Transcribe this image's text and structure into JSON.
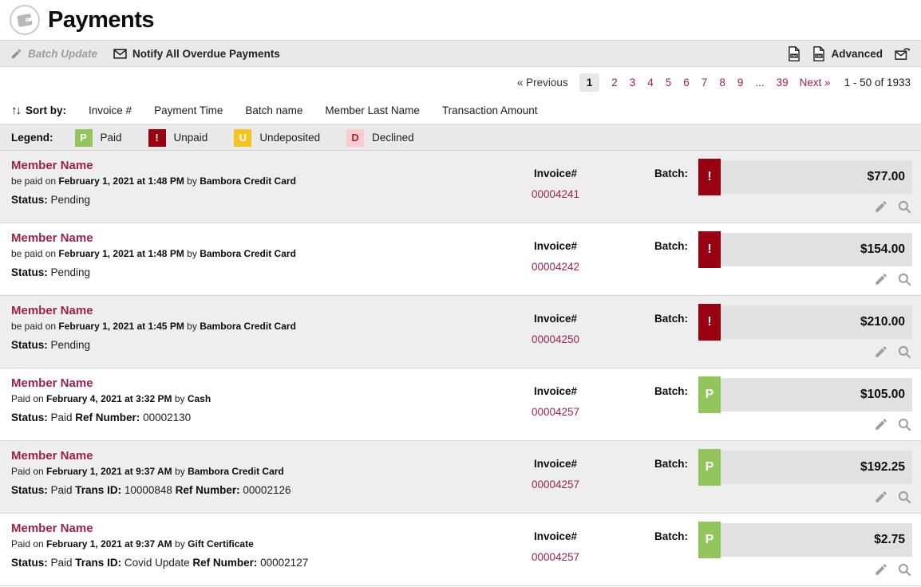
{
  "page": {
    "title": "Payments"
  },
  "toolbar": {
    "batch_update": "Batch Update",
    "notify": "Notify All Overdue Payments",
    "advanced": "Advanced"
  },
  "pagination": {
    "previous": "« Previous",
    "next": "Next »",
    "range": "1 - 50 of 1933",
    "pages": [
      {
        "label": "1",
        "type": "current"
      },
      {
        "label": "2",
        "type": "link"
      },
      {
        "label": "3",
        "type": "link"
      },
      {
        "label": "4",
        "type": "link"
      },
      {
        "label": "5",
        "type": "link"
      },
      {
        "label": "6",
        "type": "link"
      },
      {
        "label": "7",
        "type": "link"
      },
      {
        "label": "8",
        "type": "link"
      },
      {
        "label": "9",
        "type": "link"
      },
      {
        "label": "...",
        "type": "ellipsis"
      },
      {
        "label": "39",
        "type": "link"
      }
    ]
  },
  "sort": {
    "label": "Sort by:",
    "options": [
      "Invoice #",
      "Payment Time",
      "Batch name",
      "Member Last Name",
      "Transaction Amount"
    ]
  },
  "legend": {
    "label": "Legend:",
    "items": [
      {
        "char": "P",
        "label": "Paid",
        "type": "paid"
      },
      {
        "char": "!",
        "label": "Unpaid",
        "type": "unpaid"
      },
      {
        "char": "U",
        "label": "Undeposited",
        "type": "undeposited"
      },
      {
        "char": "D",
        "label": "Declined",
        "type": "declined"
      }
    ]
  },
  "columns": {
    "invoice_label": "Invoice#",
    "batch_label": "Batch:"
  },
  "colors": {
    "accent": "#9e2148",
    "paid": "#92c65c",
    "unpaid": "#990011",
    "undeposited": "#f5c420",
    "declined_bg": "#f8ccd1",
    "declined_text": "#b3202c"
  },
  "rows": [
    {
      "member_name": "Member Name",
      "payment_line": {
        "prefix": "be paid on",
        "datetime": "February 1, 2021 at 1:48 PM",
        "by": "by",
        "method": "Bambora Credit Card"
      },
      "status_parts": [
        {
          "label": "Status:",
          "value": "Pending"
        }
      ],
      "invoice_number": "00004241",
      "badge": {
        "char": "!",
        "type": "unpaid"
      },
      "amount": "$77.00"
    },
    {
      "member_name": "Member Name",
      "payment_line": {
        "prefix": "be paid on",
        "datetime": "February 1, 2021 at 1:48 PM",
        "by": "by",
        "method": "Bambora Credit Card"
      },
      "status_parts": [
        {
          "label": "Status:",
          "value": "Pending"
        }
      ],
      "invoice_number": "00004242",
      "badge": {
        "char": "!",
        "type": "unpaid"
      },
      "amount": "$154.00"
    },
    {
      "member_name": "Member Name",
      "payment_line": {
        "prefix": "be paid on",
        "datetime": "February 1, 2021 at 1:45 PM",
        "by": "by",
        "method": "Bambora Credit Card"
      },
      "status_parts": [
        {
          "label": "Status:",
          "value": "Pending"
        }
      ],
      "invoice_number": "00004250",
      "badge": {
        "char": "!",
        "type": "unpaid"
      },
      "amount": "$210.00"
    },
    {
      "member_name": "Member Name",
      "payment_line": {
        "prefix": "Paid on",
        "datetime": "February 4, 2021 at 3:32 PM",
        "by": "by",
        "method": "Cash"
      },
      "status_parts": [
        {
          "label": "Status:",
          "value": "Paid"
        },
        {
          "label": "Ref Number:",
          "value": "00002130"
        }
      ],
      "invoice_number": "00004257",
      "badge": {
        "char": "P",
        "type": "paid"
      },
      "amount": "$105.00"
    },
    {
      "member_name": "Member Name",
      "payment_line": {
        "prefix": "Paid on",
        "datetime": "February 1, 2021 at 9:37 AM",
        "by": "by",
        "method": "Bambora Credit Card"
      },
      "status_parts": [
        {
          "label": "Status:",
          "value": "Paid"
        },
        {
          "label": "Trans ID:",
          "value": "10000848"
        },
        {
          "label": "Ref Number:",
          "value": "00002126"
        }
      ],
      "invoice_number": "00004257",
      "badge": {
        "char": "P",
        "type": "paid"
      },
      "amount": "$192.25"
    },
    {
      "member_name": "Member Name",
      "payment_line": {
        "prefix": "Paid on",
        "datetime": "February 1, 2021 at 9:37 AM",
        "by": "by",
        "method": "Gift Certificate"
      },
      "status_parts": [
        {
          "label": "Status:",
          "value": "Paid"
        },
        {
          "label": "Trans ID:",
          "value": "Covid Update"
        },
        {
          "label": "Ref Number:",
          "value": "00002127"
        }
      ],
      "invoice_number": "00004257",
      "badge": {
        "char": "P",
        "type": "paid"
      },
      "amount": "$2.75"
    }
  ]
}
